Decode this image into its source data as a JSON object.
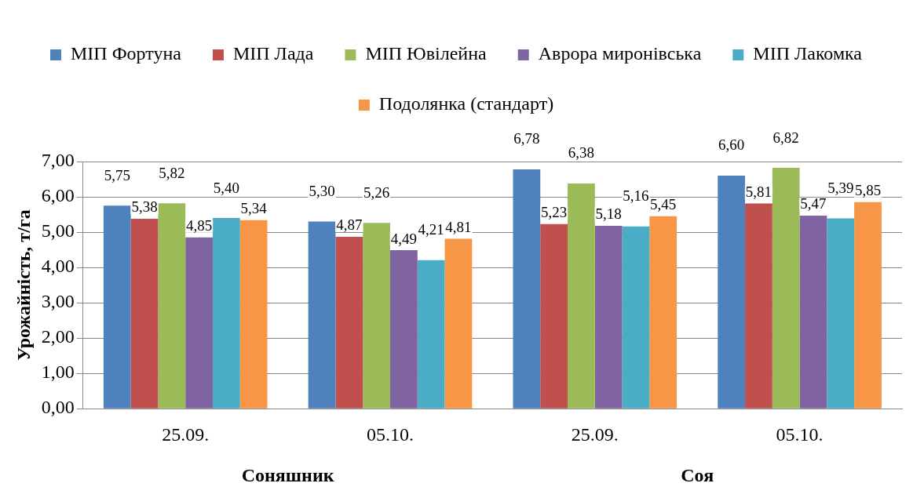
{
  "chart_data": {
    "type": "bar",
    "ylabel": "Урожайність, т/га",
    "categories": [
      "25.09.",
      "05.10.",
      "25.09.",
      "05.10."
    ],
    "annotations": [
      "Соняшник",
      "Соя"
    ],
    "ylim": [
      0,
      7
    ],
    "yticks": [
      {
        "value": 0,
        "label": "0,00"
      },
      {
        "value": 1,
        "label": "1,00"
      },
      {
        "value": 2,
        "label": "2,00"
      },
      {
        "value": 3,
        "label": "3,00"
      },
      {
        "value": 4,
        "label": "4,00"
      },
      {
        "value": 5,
        "label": "5,00"
      },
      {
        "value": 6,
        "label": "6,00"
      },
      {
        "value": 7,
        "label": "7,00"
      }
    ],
    "grid": "y",
    "legend": "top",
    "series": [
      {
        "name": "МІП Фортуна",
        "color": "#4f81bd",
        "values": [
          5.75,
          5.3,
          6.78,
          6.6
        ],
        "value_labels": [
          "5,75",
          "5,30",
          "6,78",
          "6,60"
        ]
      },
      {
        "name": "МІП Лада",
        "color": "#c0504d",
        "values": [
          5.38,
          4.87,
          5.23,
          5.81
        ],
        "value_labels": [
          "5,38",
          "4,87",
          "5,23",
          "5,81"
        ]
      },
      {
        "name": "МІП Ювілейна",
        "color": "#9bbb59",
        "values": [
          5.82,
          5.26,
          6.38,
          6.82
        ],
        "value_labels": [
          "5,82",
          "5,26",
          "6,38",
          "6,82"
        ]
      },
      {
        "name": "Аврора миронівська",
        "color": "#8064a2",
        "values": [
          4.85,
          4.49,
          5.18,
          5.47
        ],
        "value_labels": [
          "4,85",
          "4,49",
          "5,18",
          "5,47"
        ]
      },
      {
        "name": "МІП Лакомка",
        "color": "#4bacc6",
        "values": [
          5.4,
          4.21,
          5.16,
          5.39
        ],
        "value_labels": [
          "5,40",
          "4,21",
          "5,16",
          "5,39"
        ]
      },
      {
        "name": "Подолянка (стандарт)",
        "color": "#f79646",
        "values": [
          5.34,
          4.81,
          5.45,
          5.85
        ],
        "value_labels": [
          "5,34",
          "4,81",
          "5,45",
          "5,85"
        ]
      }
    ]
  }
}
